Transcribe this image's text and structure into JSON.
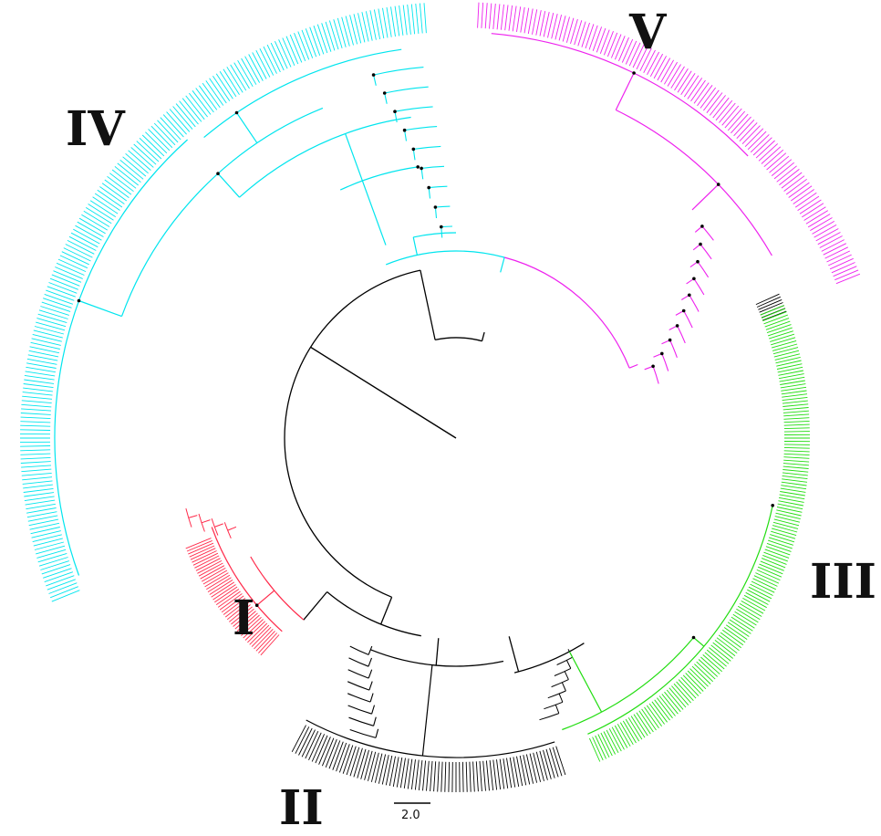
{
  "figure": {
    "type": "circular phylogenetic tree",
    "background": "#ffffff"
  },
  "scale_bar": {
    "label": "2.0"
  },
  "clades": [
    {
      "id": "I",
      "label": "I",
      "color": "#ff2a4a"
    },
    {
      "id": "II",
      "label": "II",
      "color": "#000000"
    },
    {
      "id": "III",
      "label": "III",
      "color": "#22dd11"
    },
    {
      "id": "IV",
      "label": "IV",
      "color": "#00e5ee"
    },
    {
      "id": "V",
      "label": "V",
      "color": "#ee22ee"
    }
  ],
  "backbone_color": "#000000"
}
